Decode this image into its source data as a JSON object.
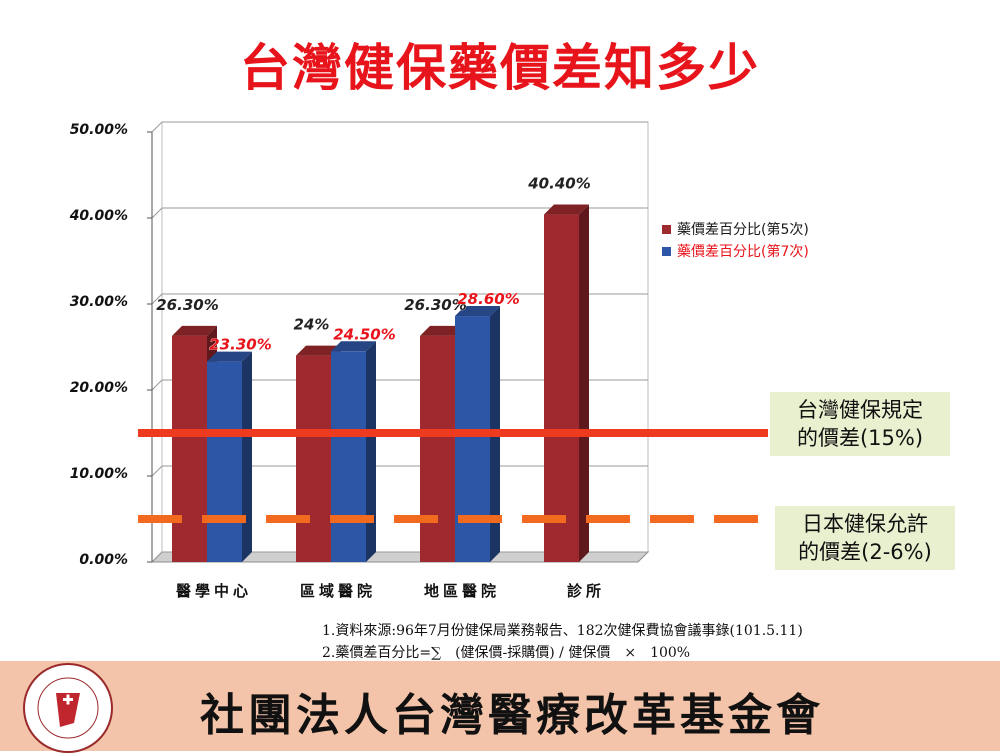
{
  "title": "台灣健保藥價差知多少",
  "chart_data": {
    "type": "bar",
    "categories": [
      "醫學中心",
      "區域醫院",
      "地區醫院",
      "診所"
    ],
    "series": [
      {
        "name": "藥價差百分比(第5次)",
        "values": [
          26.3,
          24,
          26.3,
          40.4
        ],
        "labels": [
          "26.30%",
          "24%",
          "26.30%",
          "40.40%"
        ],
        "color": "#9e2a2f"
      },
      {
        "name": "藥價差百分比(第7次)",
        "values": [
          23.3,
          24.5,
          28.6,
          null
        ],
        "labels": [
          "23.30%",
          "24.50%",
          "28.60%",
          ""
        ],
        "color": "#2e56a6"
      }
    ],
    "yticks": [
      "50.00%",
      "40.00%",
      "30.00%",
      "20.00%",
      "10.00%",
      "0.00%"
    ],
    "ylim": [
      0,
      50
    ],
    "grid": true,
    "legend_position": "right",
    "reference_lines": [
      {
        "value": 15,
        "style": "solid",
        "color": "#ee3b1f"
      },
      {
        "value": 5,
        "style": "dashed",
        "color": "#f26a1d"
      }
    ]
  },
  "callouts": {
    "taiwan_line1": "台灣健保規定",
    "taiwan_line2": "的價差(15%)",
    "japan_line1": "日本健保允許",
    "japan_line2": "的價差(2-6%)"
  },
  "notes": {
    "line1": "1.資料來源:96年7月份健保局業務報告、182次健保費協會議事錄(101.5.11)",
    "line2": "2.藥價差百分比=∑　(健保價-採購價) / 健保價　×　100%"
  },
  "footer": {
    "org_name": "社團法人台灣醫療改革基金會",
    "logo_text_top": "Taiwan Healthcare Reform Foundation",
    "logo_text_bottom": "台灣醫療改革基金會"
  }
}
